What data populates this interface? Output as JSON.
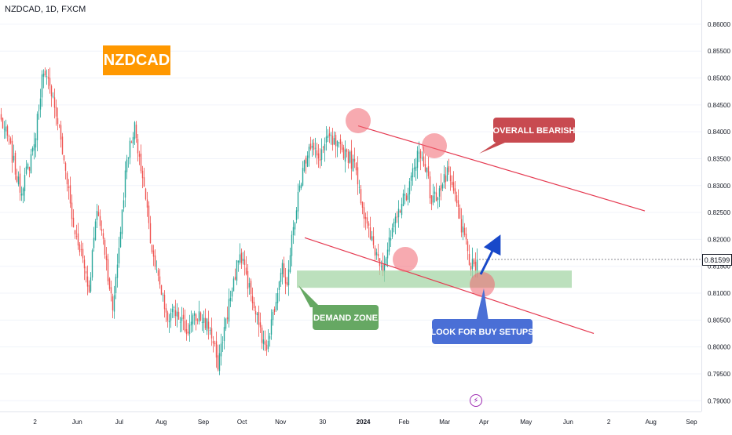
{
  "header": {
    "symbol_label": "NZDCAD, 1D, FXCM"
  },
  "badge": {
    "text": "NZDCAD",
    "color": "#ff9800"
  },
  "annotations": {
    "overall_bearish": "OVERALL BEARISH",
    "demand_zone": "DEMAND ZONE",
    "look_for_buy": "LOOK FOR BUY SETUPS"
  },
  "colors": {
    "up": "#26a69a",
    "down": "#ef5350",
    "trendline": "#e53950",
    "zone": "#a5d6a7",
    "bearish_callout": "#c84a50",
    "demand_callout": "#66a863",
    "buy_callout": "#4a6fd6",
    "arrow": "#1848c9"
  },
  "current_price": "0.81599",
  "events": {
    "icon": "lightning-icon"
  },
  "chart_data": {
    "type": "candlestick",
    "title": "NZDCAD, 1D, FXCM",
    "ylim": [
      0.788,
      0.8645
    ],
    "y_ticks": [
      "0.86000",
      "0.85500",
      "0.85000",
      "0.84500",
      "0.84000",
      "0.83500",
      "0.83000",
      "0.82500",
      "0.82000",
      "0.81500",
      "0.81000",
      "0.80500",
      "0.80000",
      "0.79500",
      "0.79000"
    ],
    "x_ticks": [
      "2",
      "Jun",
      "Jul",
      "Aug",
      "Sep",
      "Oct",
      "Nov",
      "30",
      "2024",
      "Feb",
      "Mar",
      "Apr",
      "May",
      "Jun",
      "2",
      "Aug",
      "Sep"
    ],
    "anchors": [
      {
        "i": 0,
        "p": 0.842
      },
      {
        "i": 5,
        "p": 0.838
      },
      {
        "i": 12,
        "p": 0.829
      },
      {
        "i": 18,
        "p": 0.834
      },
      {
        "i": 22,
        "p": 0.84
      },
      {
        "i": 26,
        "p": 0.85
      },
      {
        "i": 31,
        "p": 0.849
      },
      {
        "i": 36,
        "p": 0.842
      },
      {
        "i": 41,
        "p": 0.833
      },
      {
        "i": 46,
        "p": 0.822
      },
      {
        "i": 51,
        "p": 0.818
      },
      {
        "i": 56,
        "p": 0.811
      },
      {
        "i": 61,
        "p": 0.826
      },
      {
        "i": 66,
        "p": 0.818
      },
      {
        "i": 71,
        "p": 0.807
      },
      {
        "i": 76,
        "p": 0.822
      },
      {
        "i": 80,
        "p": 0.835
      },
      {
        "i": 85,
        "p": 0.841
      },
      {
        "i": 90,
        "p": 0.832
      },
      {
        "i": 95,
        "p": 0.82
      },
      {
        "i": 100,
        "p": 0.812
      },
      {
        "i": 106,
        "p": 0.805
      },
      {
        "i": 112,
        "p": 0.807
      },
      {
        "i": 118,
        "p": 0.803
      },
      {
        "i": 125,
        "p": 0.806
      },
      {
        "i": 132,
        "p": 0.804
      },
      {
        "i": 138,
        "p": 0.797
      },
      {
        "i": 143,
        "p": 0.805
      },
      {
        "i": 148,
        "p": 0.812
      },
      {
        "i": 152,
        "p": 0.818
      },
      {
        "i": 158,
        "p": 0.811
      },
      {
        "i": 163,
        "p": 0.806
      },
      {
        "i": 168,
        "p": 0.799
      },
      {
        "i": 173,
        "p": 0.806
      },
      {
        "i": 178,
        "p": 0.815
      },
      {
        "i": 182,
        "p": 0.812
      },
      {
        "i": 186,
        "p": 0.822
      },
      {
        "i": 190,
        "p": 0.83
      },
      {
        "i": 196,
        "p": 0.838
      },
      {
        "i": 202,
        "p": 0.835
      },
      {
        "i": 208,
        "p": 0.839
      },
      {
        "i": 214,
        "p": 0.837
      },
      {
        "i": 220,
        "p": 0.836
      },
      {
        "i": 226,
        "p": 0.833
      },
      {
        "i": 232,
        "p": 0.823
      },
      {
        "i": 238,
        "p": 0.818
      },
      {
        "i": 243,
        "p": 0.815
      },
      {
        "i": 248,
        "p": 0.82
      },
      {
        "i": 254,
        "p": 0.826
      },
      {
        "i": 260,
        "p": 0.83
      },
      {
        "i": 265,
        "p": 0.836
      },
      {
        "i": 270,
        "p": 0.834
      },
      {
        "i": 274,
        "p": 0.827
      },
      {
        "i": 279,
        "p": 0.829
      },
      {
        "i": 284,
        "p": 0.832
      },
      {
        "i": 289,
        "p": 0.828
      },
      {
        "i": 294,
        "p": 0.821
      },
      {
        "i": 299,
        "p": 0.815
      },
      {
        "i": 303,
        "p": 0.815
      }
    ],
    "resistance_line": [
      [
        0.8411,
        0.8393
      ],
      [
        0.8253,
        0.8243
      ]
    ],
    "support_line": [
      [
        0.8203,
        0.8207
      ],
      [
        0.8025,
        0.8035
      ]
    ],
    "demand_zone": {
      "from": 0.811,
      "to": 0.8142
    }
  }
}
